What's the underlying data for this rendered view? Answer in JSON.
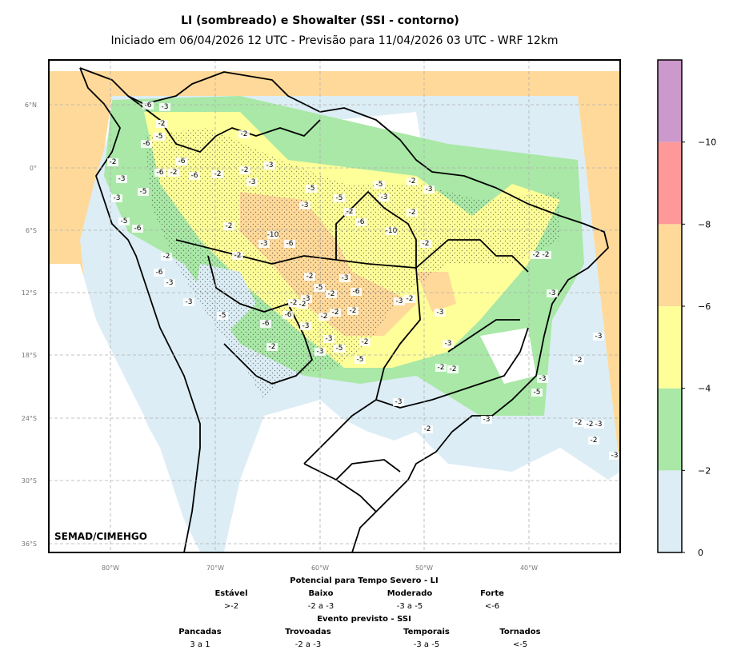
{
  "title": "LI (sombreado) e Showalter (SSI - contorno)",
  "subtitle": "Iniciado em 06/04/2026 12 UTC - Previsão para 11/04/2026 03 UTC - WRF 12km",
  "watermark": "SEMAD/CIMEHGO",
  "lat_ticks": [
    "6°N",
    "0°",
    "6°S",
    "12°S",
    "18°S",
    "24°S",
    "30°S",
    "36°S"
  ],
  "lon_ticks": [
    "80°W",
    "70°W",
    "60°W",
    "50°W",
    "40°W"
  ],
  "colorbar": {
    "ticks": [
      "0",
      "−2",
      "−4",
      "−6",
      "−8",
      "−10"
    ],
    "colors": [
      "#dcedf5",
      "#a9e8a6",
      "#ffff99",
      "#ffd999",
      "#ff9999",
      "#cc99cc"
    ]
  },
  "legend_li": {
    "heading": "Potencial para Tempo Severo - LI",
    "columns": [
      {
        "label": "Estável",
        "value": ">-2"
      },
      {
        "label": "Baixo",
        "value": "-2 a -3"
      },
      {
        "label": "Moderado",
        "value": "-3 a -5"
      },
      {
        "label": "Forte",
        "value": "<-6"
      }
    ]
  },
  "legend_ssi": {
    "heading": "Evento previsto - SSI",
    "columns": [
      {
        "label": "Pancadas",
        "value": "3 a 1"
      },
      {
        "label": "Trovoadas",
        "value": "-2 a -3"
      },
      {
        "label": "Temporais",
        "value": "-3 a -5"
      },
      {
        "label": "Tornados",
        "value": "<-5"
      }
    ]
  },
  "contour_labels": [
    "-6",
    "-3",
    "-2",
    "-6",
    "-5",
    "-2",
    "-3",
    "-6",
    "-2",
    "-6",
    "-6",
    "-2",
    "-2",
    "-3",
    "-3",
    "-5",
    "-3",
    "-5",
    "-6",
    "-2",
    "-2",
    "-3",
    "-5",
    "-5",
    "-2",
    "-6",
    "-5",
    "-3",
    "-2",
    "-3",
    "-2",
    "-10",
    "-10",
    "-3",
    "-2",
    "-6",
    "-2",
    "-3",
    "-5",
    "-6",
    "-3",
    "-2",
    "-5",
    "-2",
    "-3",
    "-6",
    "-3",
    "-2",
    "-2",
    "-6",
    "-6",
    "-3",
    "-2",
    "-2",
    "-2",
    "-3",
    "-2",
    "-3",
    "-3",
    "-2",
    "-3",
    "-5",
    "-5",
    "-3",
    "-2",
    "-2",
    "-2",
    "-3",
    "-2",
    "-3",
    "-2",
    "-2",
    "-3",
    "-3",
    "-2",
    "-3",
    "-5",
    "-2",
    "-2",
    "-3",
    "-2",
    "-3",
    "-2"
  ]
}
